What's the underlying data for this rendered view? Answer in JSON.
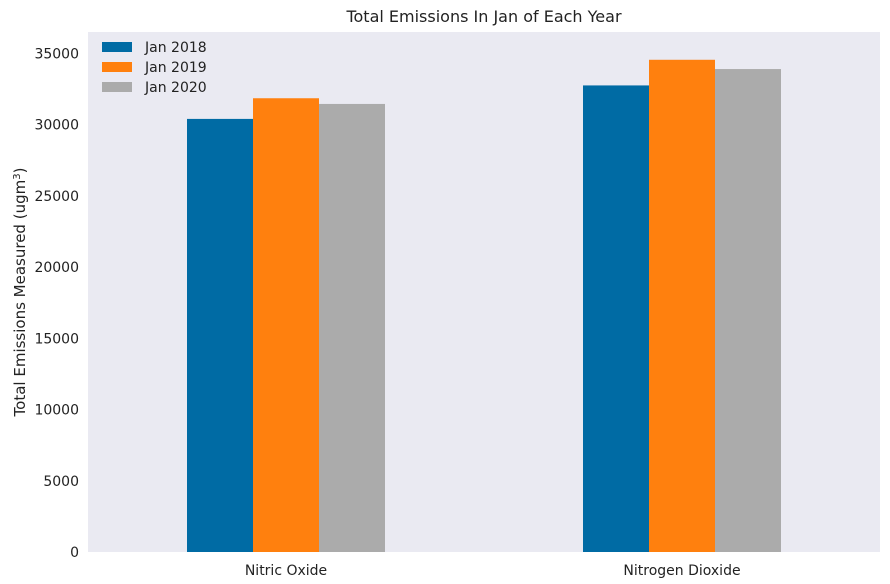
{
  "chart_data": {
    "type": "bar",
    "title": "Total Emissions In Jan of Each Year",
    "xlabel": "",
    "ylabel": "Total Emissions Measured (ugm",
    "ylabel_sup": "3",
    "ylabel_close": ")",
    "categories": [
      "Nitric Oxide",
      "Nitrogen Dioxide"
    ],
    "series": [
      {
        "name": "Jan 2018",
        "color": "#006BA4",
        "values": [
          30400,
          32750
        ]
      },
      {
        "name": "Jan 2019",
        "color": "#FF800E",
        "values": [
          31850,
          34550
        ]
      },
      {
        "name": "Jan 2020",
        "color": "#ABABAB",
        "values": [
          31450,
          33900
        ]
      }
    ],
    "ylim": [
      0,
      36500
    ],
    "yticks": [
      0,
      5000,
      10000,
      15000,
      20000,
      25000,
      30000,
      35000
    ],
    "ytick_labels": [
      "0",
      "5000",
      "10000",
      "15000",
      "20000",
      "25000",
      "30000",
      "35000"
    ],
    "grid": false,
    "legend_position": "top-left",
    "background": "#EAEAF2"
  }
}
